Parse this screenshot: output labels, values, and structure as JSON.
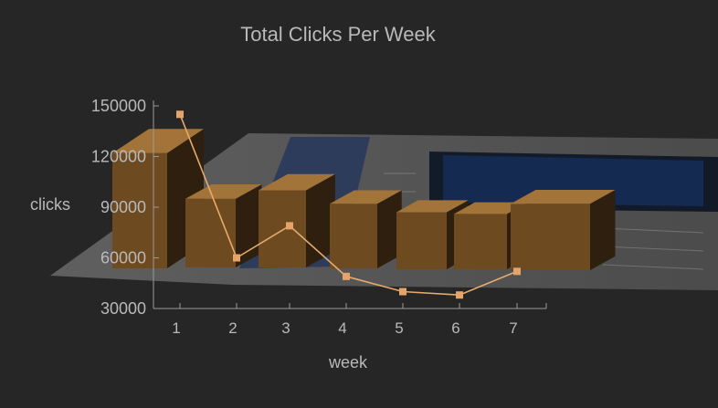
{
  "chart_data": {
    "type": "bar",
    "title": "Total Clicks Per Week",
    "xlabel": "week",
    "ylabel": "clicks",
    "categories": [
      "1",
      "2",
      "3",
      "4",
      "5",
      "6",
      "7"
    ],
    "ylim": [
      30000,
      150000
    ],
    "yticks": [
      30000,
      60000,
      90000,
      120000,
      150000
    ],
    "series": [
      {
        "type": "bar",
        "values": [
          122000,
          95000,
          100000,
          92000,
          87000,
          86000,
          92000
        ]
      },
      {
        "type": "line",
        "values": [
          145000,
          60000,
          79000,
          49000,
          40000,
          38000,
          52000
        ]
      }
    ],
    "grid": false,
    "legend": "none",
    "colors": {
      "background": "#262626",
      "bar_front": "#6e4a20",
      "bar_top": "#a3743a",
      "bar_side": "#2e1f0e",
      "line": "#e4ab6b",
      "marker": "#e4a46a",
      "axis": "#9a9a9a",
      "text": "#b9b9b9"
    }
  }
}
